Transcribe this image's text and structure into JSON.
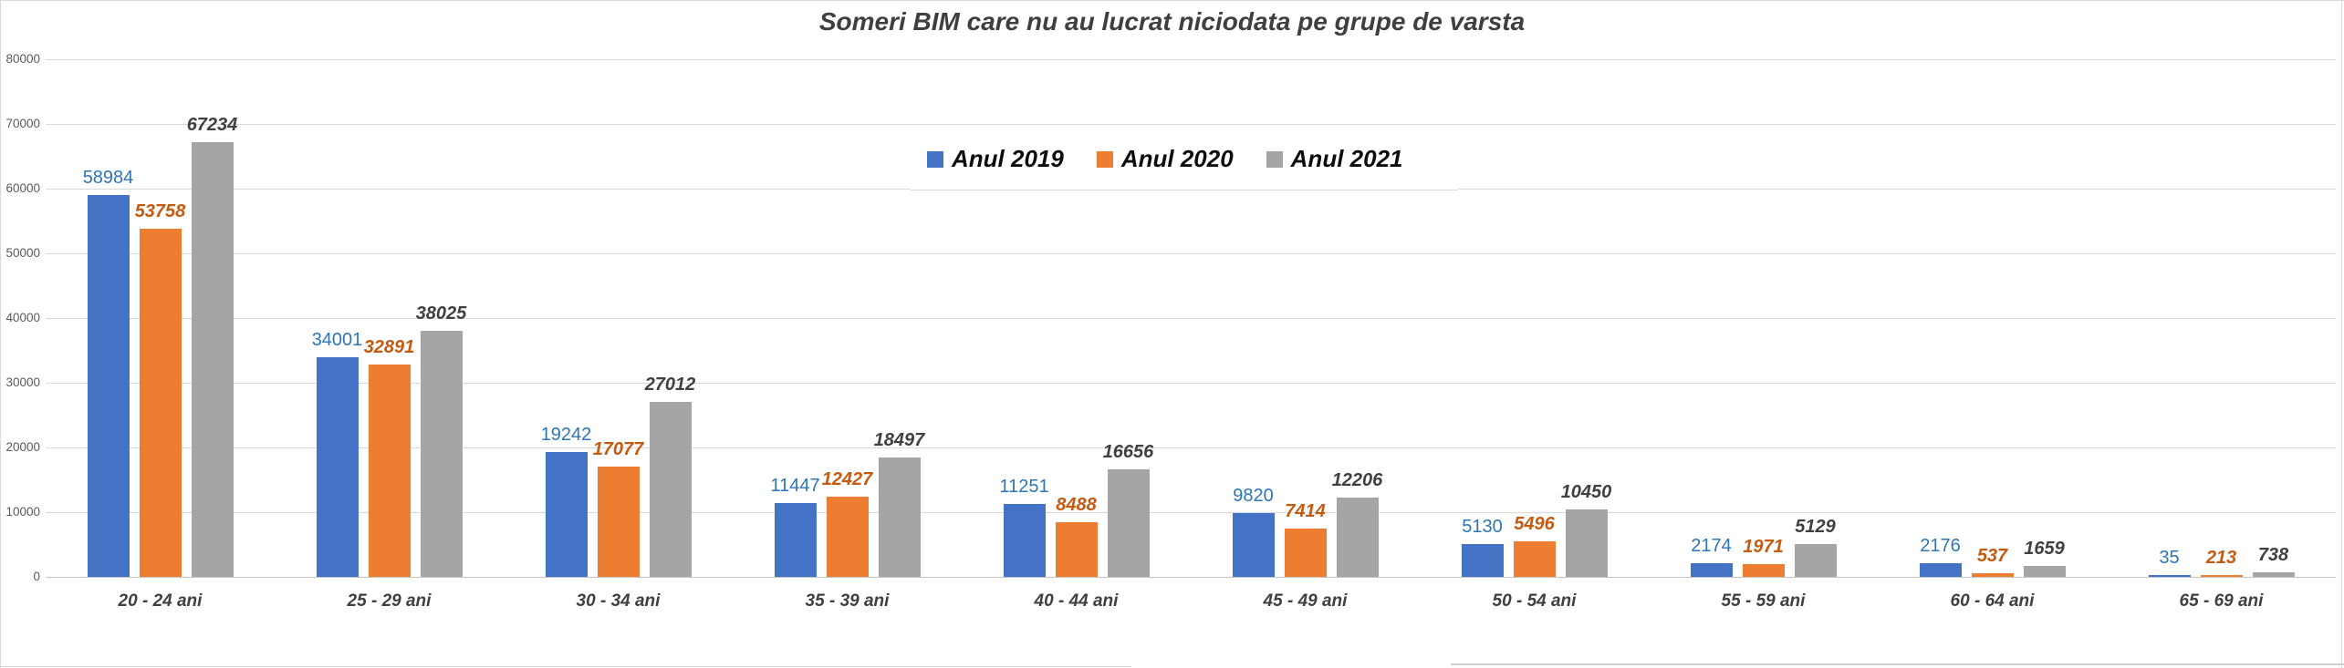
{
  "title": "Someri BIM care nu au lucrat niciodata pe grupe de varsta",
  "legend": {
    "items": [
      {
        "label": "Anul 2019",
        "color": "#4472C4"
      },
      {
        "label": "Anul 2020",
        "color": "#ED7D31"
      },
      {
        "label": "Anul 2021",
        "color": "#A5A5A5"
      }
    ]
  },
  "chart_data": {
    "type": "bar",
    "title": "Someri BIM care nu au lucrat niciodata pe grupe de varsta",
    "categories": [
      "20 - 24 ani",
      "25 - 29 ani",
      "30 - 34 ani",
      "35 - 39 ani",
      "40 - 44 ani",
      "45 - 49 ani",
      "50 - 54 ani",
      "55 - 59 ani",
      "60 - 64 ani",
      "65 - 69 ani"
    ],
    "series": [
      {
        "name": "Anul 2019",
        "color": "#4472C4",
        "label_color": "#2E75B6",
        "label_style": "regular",
        "values": [
          58984,
          34001,
          19242,
          11447,
          11251,
          9820,
          5130,
          2174,
          2176,
          35
        ]
      },
      {
        "name": "Anul 2020",
        "color": "#ED7D31",
        "label_color": "#C55A11",
        "label_style": "bold-italic",
        "values": [
          53758,
          32891,
          17077,
          12427,
          8488,
          7414,
          5496,
          1971,
          537,
          213
        ]
      },
      {
        "name": "Anul 2021",
        "color": "#A5A5A5",
        "label_color": "#404040",
        "label_style": "bold-italic",
        "values": [
          67234,
          38025,
          27012,
          18497,
          16656,
          12206,
          10450,
          5129,
          1659,
          738
        ]
      }
    ],
    "y_axis": {
      "min": 0,
      "max": 80000,
      "step": 10000,
      "tick_labels": [
        "0",
        "10000",
        "20000",
        "30000",
        "40000",
        "50000",
        "60000",
        "70000",
        "80000"
      ]
    },
    "xlabel": "",
    "ylabel": "",
    "grid": true,
    "legend_position": "top-center",
    "data_labels": true
  },
  "colors": {
    "grid": "#d9d9d9",
    "axis_line": "#c3c3c3",
    "tick_text": "#595959",
    "title_text": "#3f3f3f",
    "category_text": "#404040",
    "frame_border": "#d9d9d9"
  }
}
